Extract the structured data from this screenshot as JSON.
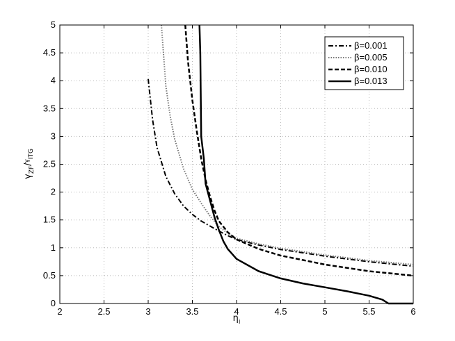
{
  "chart_data": {
    "type": "line",
    "title": "",
    "xlabel": {
      "main": "η",
      "sub": "i"
    },
    "ylabel": {
      "g1": "γ",
      "s1": "ZF",
      "slash": "/",
      "g2": "γ",
      "s2": "ITG"
    },
    "xlim": [
      2,
      6
    ],
    "ylim": [
      0,
      5
    ],
    "grid": true,
    "legend_position": "top-right",
    "x_ticks": [
      "2",
      "2.5",
      "3",
      "3.5",
      "4",
      "4.5",
      "5",
      "5.5",
      "6"
    ],
    "y_ticks": [
      "0",
      "0.5",
      "1",
      "1.5",
      "2",
      "2.5",
      "3",
      "3.5",
      "4",
      "4.5",
      "5"
    ],
    "series": [
      {
        "name": "β=0.001",
        "style": "dashdot",
        "color": "#000000",
        "points": [
          [
            3.0,
            4.03
          ],
          [
            3.05,
            3.3
          ],
          [
            3.1,
            2.8
          ],
          [
            3.2,
            2.28
          ],
          [
            3.3,
            1.97
          ],
          [
            3.4,
            1.75
          ],
          [
            3.5,
            1.6
          ],
          [
            3.6,
            1.48
          ],
          [
            3.7,
            1.39
          ],
          [
            3.8,
            1.3
          ],
          [
            3.9,
            1.22
          ],
          [
            4.0,
            1.15
          ],
          [
            4.25,
            1.05
          ],
          [
            4.5,
            0.97
          ],
          [
            4.75,
            0.91
          ],
          [
            5.0,
            0.85
          ],
          [
            5.5,
            0.75
          ],
          [
            6.0,
            0.67
          ]
        ]
      },
      {
        "name": "β=0.005",
        "style": "dotted",
        "color": "#777777",
        "points": [
          [
            3.15,
            5.0
          ],
          [
            3.2,
            3.9
          ],
          [
            3.25,
            3.35
          ],
          [
            3.3,
            2.95
          ],
          [
            3.4,
            2.42
          ],
          [
            3.5,
            2.05
          ],
          [
            3.6,
            1.8
          ],
          [
            3.7,
            1.57
          ],
          [
            3.8,
            1.38
          ],
          [
            3.9,
            1.26
          ],
          [
            4.0,
            1.17
          ],
          [
            4.25,
            1.07
          ],
          [
            4.5,
            0.99
          ],
          [
            4.75,
            0.93
          ],
          [
            5.0,
            0.87
          ],
          [
            5.5,
            0.77
          ],
          [
            6.0,
            0.7
          ]
        ]
      },
      {
        "name": "β=0.010",
        "style": "dashed",
        "color": "#000000",
        "points": [
          [
            3.42,
            5.0
          ],
          [
            3.45,
            4.35
          ],
          [
            3.5,
            3.65
          ],
          [
            3.55,
            3.1
          ],
          [
            3.6,
            2.6
          ],
          [
            3.65,
            2.22
          ],
          [
            3.7,
            1.92
          ],
          [
            3.75,
            1.67
          ],
          [
            3.8,
            1.48
          ],
          [
            3.9,
            1.28
          ],
          [
            4.0,
            1.15
          ],
          [
            4.25,
            0.98
          ],
          [
            4.5,
            0.86
          ],
          [
            4.75,
            0.78
          ],
          [
            5.0,
            0.7
          ],
          [
            5.5,
            0.58
          ],
          [
            6.0,
            0.5
          ]
        ]
      },
      {
        "name": "β=0.013",
        "style": "solid",
        "color": "#000000",
        "points": [
          [
            3.58,
            5.0
          ],
          [
            3.59,
            4.5
          ],
          [
            3.6,
            3.0
          ],
          [
            3.63,
            2.6
          ],
          [
            3.65,
            2.15
          ],
          [
            3.7,
            1.85
          ],
          [
            3.75,
            1.55
          ],
          [
            3.8,
            1.32
          ],
          [
            3.85,
            1.12
          ],
          [
            3.9,
            0.98
          ],
          [
            4.0,
            0.8
          ],
          [
            4.25,
            0.58
          ],
          [
            4.5,
            0.45
          ],
          [
            4.75,
            0.36
          ],
          [
            5.0,
            0.29
          ],
          [
            5.25,
            0.22
          ],
          [
            5.5,
            0.14
          ],
          [
            5.65,
            0.07
          ],
          [
            5.72,
            0.0
          ],
          [
            6.0,
            0.0
          ]
        ]
      }
    ]
  }
}
